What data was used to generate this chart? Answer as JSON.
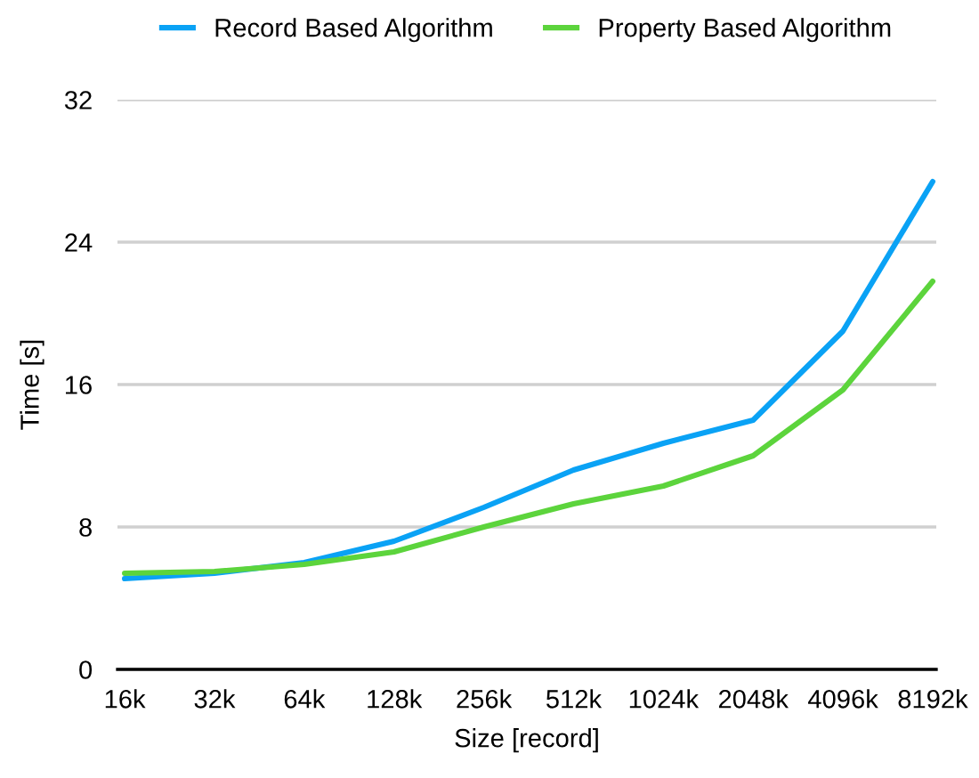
{
  "chart_data": {
    "type": "line",
    "xlabel": "Size [record]",
    "ylabel": "Time [s]",
    "categories": [
      "16k",
      "32k",
      "64k",
      "128k",
      "256k",
      "512k",
      "1024k",
      "2048k",
      "4096k",
      "8192k"
    ],
    "series": [
      {
        "name": "Record Based Algorithm",
        "color": "#0aa2f5",
        "values": [
          5.1,
          5.4,
          6.0,
          7.2,
          9.1,
          11.2,
          12.7,
          14.0,
          19.0,
          27.4
        ]
      },
      {
        "name": "Property Based Algorithm",
        "color": "#5cd43c",
        "values": [
          5.4,
          5.5,
          5.9,
          6.6,
          8.0,
          9.3,
          10.3,
          12.0,
          15.7,
          21.8
        ]
      }
    ],
    "ylim": [
      0,
      32
    ],
    "yticks": [
      0,
      8,
      16,
      24,
      32
    ],
    "grid": "y",
    "legend": "top",
    "marker": "none",
    "line_style": "solid"
  }
}
